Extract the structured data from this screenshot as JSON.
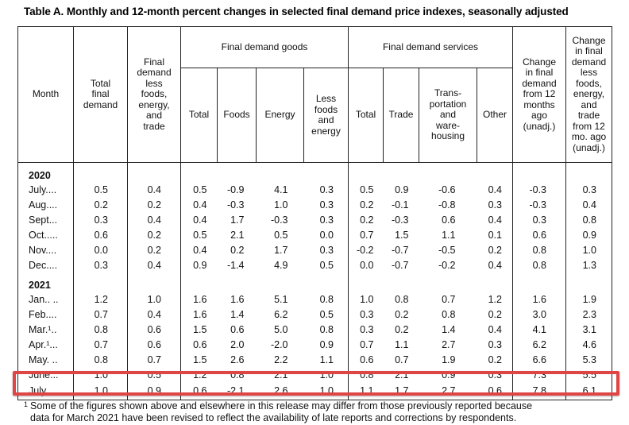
{
  "title": "Table A. Monthly and 12-month percent changes in selected final demand price indexes, seasonally adjusted",
  "colors": {
    "highlight_box": "#e04545",
    "table_border": "#222222"
  },
  "table": {
    "header": {
      "month": "Month",
      "total_final_demand": "Total\nfinal\ndemand",
      "less_foods_energy_trade": "Final\ndemand\nless\nfoods,\nenergy,\nand\ntrade",
      "goods_group": "Final demand goods",
      "goods_cols": [
        "Total",
        "Foods",
        "Energy",
        "Less\nfoods\nand\nenergy"
      ],
      "services_group": "Final demand services",
      "services_cols": [
        "Total",
        "Trade",
        "Trans-\nportation\nand\nware-\nhousing",
        "Other"
      ],
      "change_12mo": "Change\nin final\ndemand\nfrom 12\nmonths\nago\n(unadj.)",
      "change_12mo_less": "Change\nin final\ndemand\nless\nfoods,\nenergy,\nand\ntrade\nfrom 12\nmo. ago\n(unadj.)"
    },
    "rows": [
      {
        "type": "year",
        "label": "2020"
      },
      {
        "type": "month",
        "label": "July....",
        "values": [
          "0.5",
          "0.4",
          "0.5",
          "-0.9",
          "4.1",
          "0.3",
          "0.5",
          "0.9",
          "-0.6",
          "0.4",
          "-0.3",
          "0.3"
        ]
      },
      {
        "type": "month",
        "label": "Aug....",
        "values": [
          "0.2",
          "0.2",
          "0.4",
          "-0.3",
          "1.0",
          "0.3",
          "0.2",
          "-0.1",
          "-0.8",
          "0.3",
          "-0.3",
          "0.4"
        ]
      },
      {
        "type": "month",
        "label": "Sept...",
        "values": [
          "0.3",
          "0.4",
          "0.4",
          "1.7",
          "-0.3",
          "0.3",
          "0.2",
          "-0.3",
          "0.6",
          "0.4",
          "0.3",
          "0.8"
        ]
      },
      {
        "type": "month",
        "label": "Oct.....",
        "values": [
          "0.6",
          "0.2",
          "0.5",
          "2.1",
          "0.5",
          "0.0",
          "0.7",
          "1.5",
          "1.1",
          "0.1",
          "0.6",
          "0.9"
        ]
      },
      {
        "type": "month",
        "label": "Nov....",
        "values": [
          "0.0",
          "0.2",
          "0.4",
          "0.2",
          "1.7",
          "0.3",
          "-0.2",
          "-0.7",
          "-0.5",
          "0.2",
          "0.8",
          "1.0"
        ]
      },
      {
        "type": "month",
        "label": "Dec....",
        "values": [
          "0.3",
          "0.4",
          "0.9",
          "-1.4",
          "4.9",
          "0.5",
          "0.0",
          "-0.7",
          "-0.2",
          "0.4",
          "0.8",
          "1.3"
        ]
      },
      {
        "type": "year",
        "label": "2021"
      },
      {
        "type": "month",
        "label": "Jan.. ..",
        "values": [
          "1.2",
          "1.0",
          "1.6",
          "1.6",
          "5.1",
          "0.8",
          "1.0",
          "0.8",
          "0.7",
          "1.2",
          "1.6",
          "1.9"
        ]
      },
      {
        "type": "month",
        "label": "Feb....",
        "values": [
          "0.7",
          "0.4",
          "1.6",
          "1.4",
          "6.2",
          "0.5",
          "0.3",
          "0.2",
          "0.8",
          "0.2",
          "3.0",
          "2.3"
        ]
      },
      {
        "type": "month",
        "label": "Mar.¹..",
        "values": [
          "0.8",
          "0.6",
          "1.5",
          "0.6",
          "5.0",
          "0.8",
          "0.3",
          "0.2",
          "1.4",
          "0.4",
          "4.1",
          "3.1"
        ]
      },
      {
        "type": "month",
        "label": "Apr.¹...",
        "values": [
          "0.7",
          "0.6",
          "0.6",
          "2.0",
          "-2.0",
          "0.9",
          "0.7",
          "1.1",
          "2.7",
          "0.3",
          "6.2",
          "4.6"
        ]
      },
      {
        "type": "month",
        "label": "May. ..",
        "values": [
          "0.8",
          "0.7",
          "1.5",
          "2.6",
          "2.2",
          "1.1",
          "0.6",
          "0.7",
          "1.9",
          "0.2",
          "6.6",
          "5.3"
        ]
      },
      {
        "type": "month",
        "label": "June...",
        "values": [
          "1.0",
          "0.5",
          "1.2",
          "0.8",
          "2.1",
          "1.0",
          "0.8",
          "2.1",
          "0.9",
          "0.3",
          "7.3",
          "5.5"
        ]
      },
      {
        "type": "month",
        "label": "July....",
        "highlight": true,
        "values": [
          "1.0",
          "0.9",
          "0.6",
          "-2.1",
          "2.6",
          "1.0",
          "1.1",
          "1.7",
          "2.7",
          "0.6",
          "7.8",
          "6.1"
        ]
      }
    ]
  },
  "footnote": {
    "marker": "1",
    "line1": "Some of the figures shown above and elsewhere in this release may differ from those previously reported because",
    "line2": "data for March 2021 have been revised to reflect the availability of late reports and corrections by respondents."
  }
}
